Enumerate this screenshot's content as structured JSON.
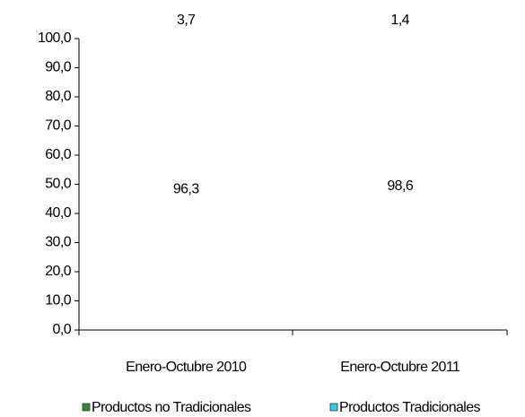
{
  "chart_data": {
    "type": "stacked_bar",
    "categories": [
      "Enero-Octubre 2010",
      "Enero-Octubre 2011"
    ],
    "series": [
      {
        "name": "Productos no Tradicionales",
        "color": "#2e8b3c",
        "values": [
          3.7,
          1.4
        ],
        "value_labels": [
          "3,7",
          "1,4"
        ]
      },
      {
        "name": "Productos Tradicionales",
        "color": "#33cce6",
        "values": [
          96.3,
          98.6
        ],
        "value_labels": [
          "96,3",
          "98,6"
        ]
      }
    ],
    "ylim": [
      0,
      100
    ],
    "yticks": [
      {
        "value": 0,
        "label": "0,0"
      },
      {
        "value": 10,
        "label": "10,0"
      },
      {
        "value": 20,
        "label": "20,0"
      },
      {
        "value": 30,
        "label": "30,0"
      },
      {
        "value": 40,
        "label": "40,0"
      },
      {
        "value": 50,
        "label": "50,0"
      },
      {
        "value": 60,
        "label": "60,0"
      },
      {
        "value": 70,
        "label": "70,0"
      },
      {
        "value": 80,
        "label": "80,0"
      },
      {
        "value": 90,
        "label": "90,0"
      },
      {
        "value": 100,
        "label": "100,0"
      }
    ],
    "legend": "bottom"
  }
}
